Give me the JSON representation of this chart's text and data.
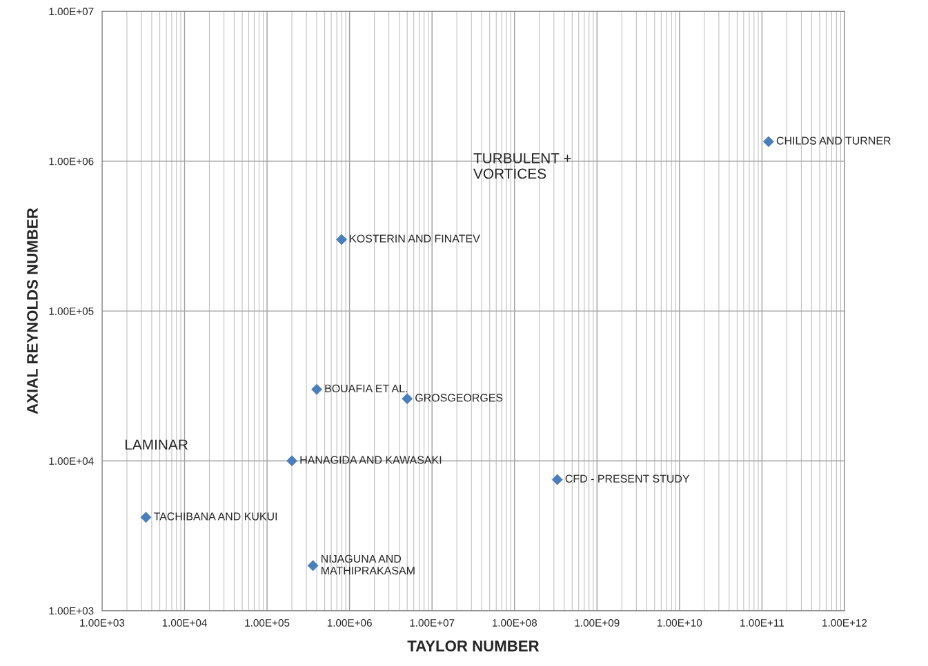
{
  "chart_data": {
    "type": "scatter",
    "xlabel": "TAYLOR NUMBER",
    "ylabel": "AXIAL REYNOLDS NUMBER",
    "log": "xy",
    "grid": true,
    "marker": "diamond",
    "x": [
      3400,
      360000,
      200000,
      400000,
      5000000,
      800000,
      330000000,
      120000000000
    ],
    "series": [
      {
        "color": "#4a7ebb",
        "values": [
          4200,
          2000,
          10000,
          30000,
          26000,
          300000,
          7500,
          1350000
        ]
      }
    ],
    "xlim": [
      1000,
      1000000000000
    ],
    "ylim": [
      1000,
      10000000
    ],
    "xticks": [
      {
        "value": 1000,
        "label": "1.00E+03"
      },
      {
        "value": 10000,
        "label": "1.00E+04"
      },
      {
        "value": 100000,
        "label": "1.00E+05"
      },
      {
        "value": 1000000,
        "label": "1.00E+06"
      },
      {
        "value": 10000000,
        "label": "1.00E+07"
      },
      {
        "value": 100000000,
        "label": "1.00E+08"
      },
      {
        "value": 1000000000,
        "label": "1.00E+09"
      },
      {
        "value": 10000000000,
        "label": "1.00E+10"
      },
      {
        "value": 100000000000,
        "label": "1.00E+11"
      },
      {
        "value": 1000000000000,
        "label": "1.00E+12"
      }
    ],
    "yticks": [
      {
        "value": 1000,
        "label": "1.00E+03"
      },
      {
        "value": 10000,
        "label": "1.00E+04"
      },
      {
        "value": 100000,
        "label": "1.00E+05"
      },
      {
        "value": 1000000,
        "label": "1.00E+06"
      },
      {
        "value": 10000000,
        "label": "1.00E+07"
      }
    ],
    "annotations": [
      {
        "text": "TACHIBANA AND KUKUI",
        "x": 3400,
        "y": 4200
      },
      {
        "text": "NIJAGUNA AND\nMATHIPRAKASAM",
        "x": 360000,
        "y": 2000
      },
      {
        "text": "HANAGIDA AND KAWASAKI",
        "x": 200000,
        "y": 10000
      },
      {
        "text": "BOUAFIA ET AL.",
        "x": 400000,
        "y": 30000
      },
      {
        "text": "GROSGEORGES",
        "x": 5000000,
        "y": 26000
      },
      {
        "text": "KOSTERIN AND FINATEV",
        "x": 800000,
        "y": 300000
      },
      {
        "text": "CFD - PRESENT STUDY",
        "x": 330000000,
        "y": 7500
      },
      {
        "text": "CHILDS AND TURNER",
        "x": 120000000000,
        "y": 1350000
      },
      "LAMINAR",
      "TURBULENT +\nVORTICES"
    ]
  }
}
